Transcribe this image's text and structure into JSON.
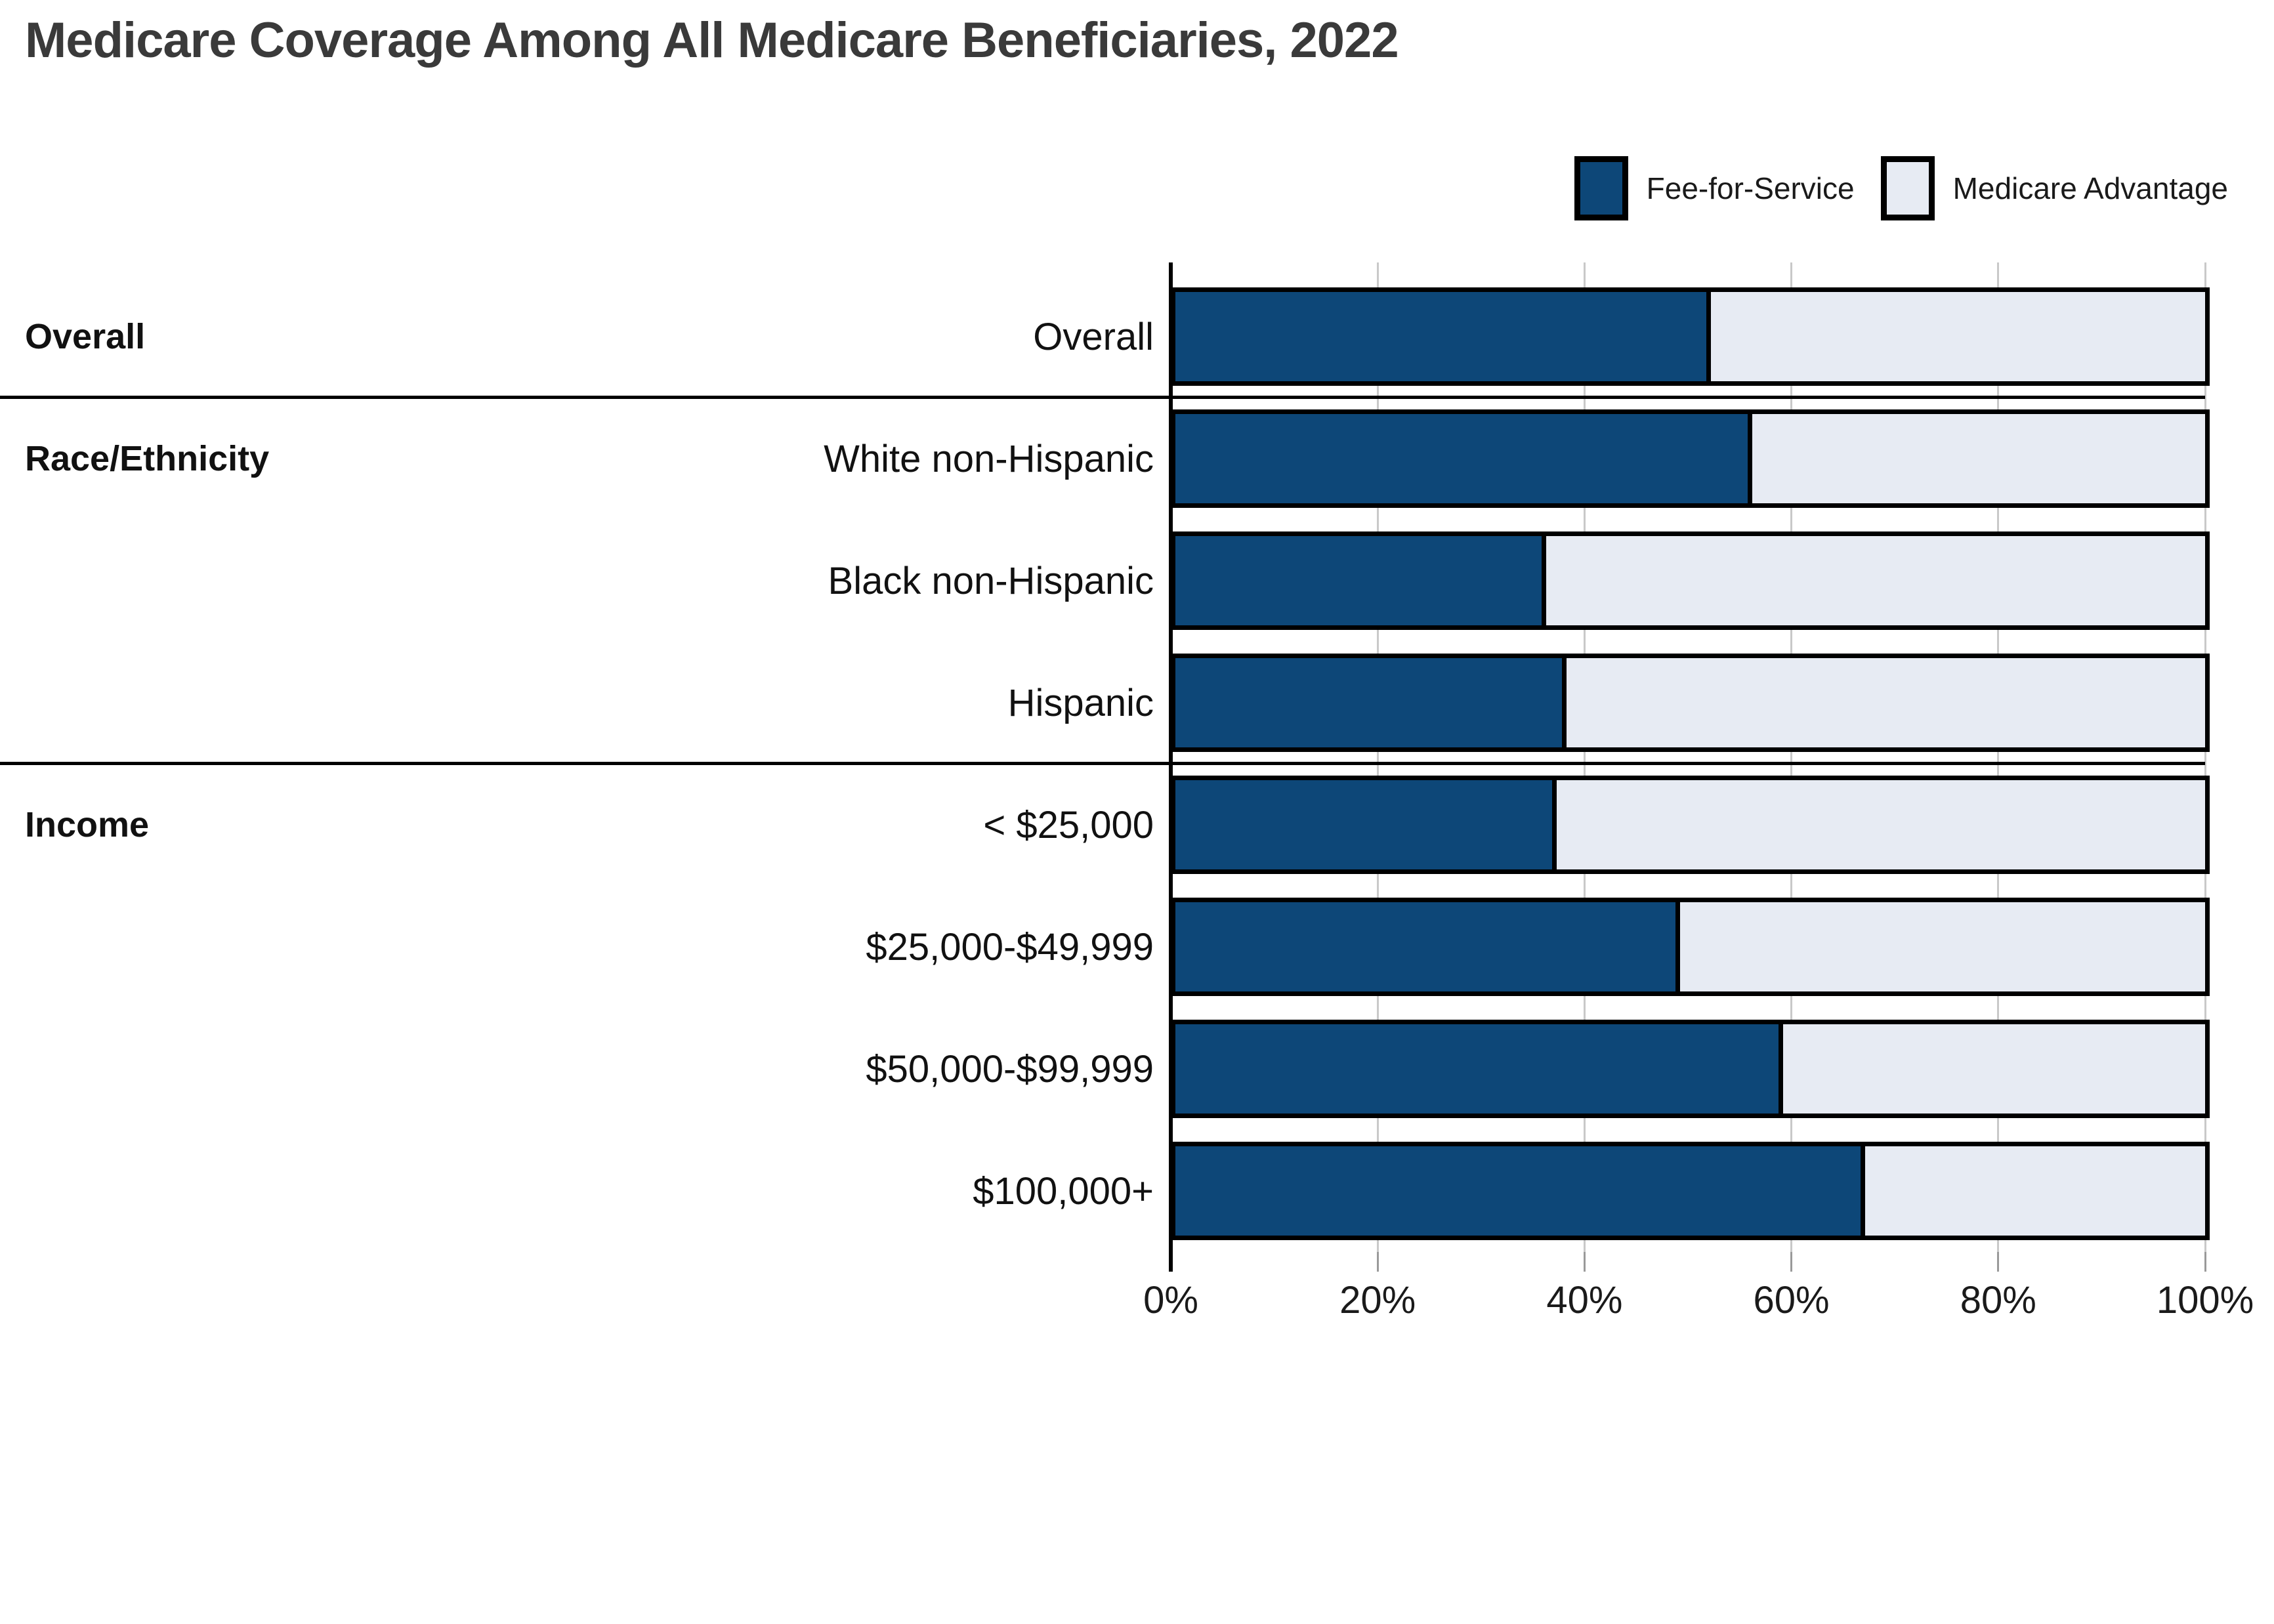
{
  "title": "Medicare Coverage Among All Medicare Beneficiaries, 2022",
  "legend": [
    {
      "label": "Fee-for-Service",
      "swatch_color": "#0d4778"
    },
    {
      "label": "Medicare Advantage",
      "swatch_color": "#e7ebf3"
    }
  ],
  "colors": {
    "fee_for_service": "#0d4778",
    "medicare_advantage": "#e7ebf3",
    "bar_border": "#000000",
    "gridline": "#c9c9c9",
    "axis": "#000000",
    "title_text": "#3a3a3a"
  },
  "chart_data": {
    "type": "bar",
    "orientation": "horizontal",
    "stacked": true,
    "title": "Medicare Coverage Among All Medicare Beneficiaries, 2022",
    "categories": [
      "Overall",
      "White non-Hispanic",
      "Black non-Hispanic",
      "Hispanic",
      "< $25,000",
      "$25,000-$49,999",
      "$50,000-$99,999",
      "$100,000+"
    ],
    "groups": [
      {
        "label": "Overall",
        "first_row": 0,
        "separator_before": false
      },
      {
        "label": "Race/Ethnicity",
        "first_row": 1,
        "separator_before": true
      },
      {
        "label": "Income",
        "first_row": 4,
        "separator_before": true
      }
    ],
    "series": [
      {
        "name": "Fee-for-Service",
        "values": [
          52,
          56,
          36,
          38,
          37,
          49,
          59,
          67
        ]
      },
      {
        "name": "Medicare Advantage",
        "values": [
          48,
          44,
          64,
          62,
          63,
          51,
          41,
          33
        ]
      }
    ],
    "x_ticks": [
      "0%",
      "20%",
      "40%",
      "60%",
      "80%",
      "100%"
    ],
    "x_tick_values": [
      0,
      20,
      40,
      60,
      80,
      100
    ],
    "xlim": [
      0,
      100
    ],
    "xlabel": "",
    "ylabel": "",
    "grid": true,
    "legend_position": "top-right"
  }
}
